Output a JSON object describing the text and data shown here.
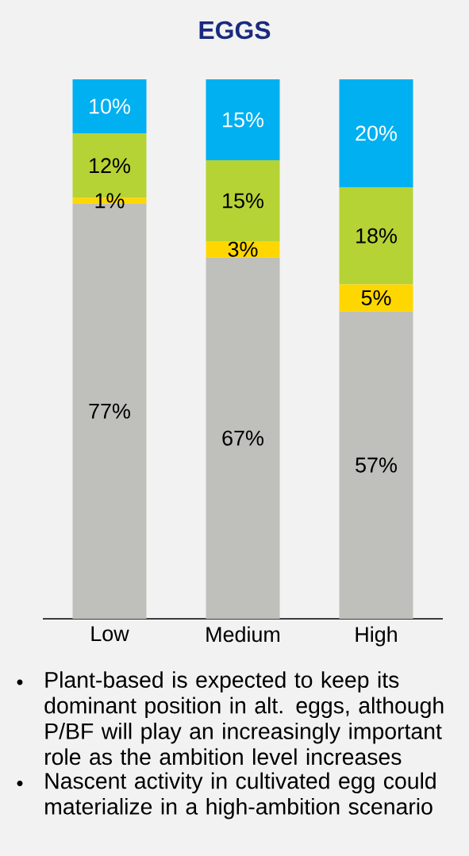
{
  "chart_data": {
    "type": "bar",
    "title": "EGGS",
    "categories": [
      "Low",
      "Medium",
      "High"
    ],
    "stacked": true,
    "ylim": [
      0,
      100
    ],
    "tick_labels": "x",
    "series": [
      {
        "color": "#bfbfbb",
        "values": [
          77,
          67,
          57
        ],
        "value_labels": [
          "77%",
          "67%",
          "57%"
        ]
      },
      {
        "color": "#ffd700",
        "values": [
          1,
          3,
          5
        ],
        "value_labels": [
          "1%",
          "3%",
          "5%"
        ]
      },
      {
        "color": "#b5d334",
        "values": [
          12,
          15,
          18
        ],
        "value_labels": [
          "12%",
          "15%",
          "18%"
        ]
      },
      {
        "color": "#00b0f0",
        "values": [
          10,
          15,
          20
        ],
        "value_labels": [
          "10%",
          "15%",
          "20%"
        ]
      }
    ],
    "annotations": [
      "Plant-based is expected to keep its dominant position in alt. eggs, although P/BF will play an increasingly important role as the ambition level increases",
      "Nascent activity in cultivated egg could materialize in a high-ambition scenario"
    ]
  }
}
